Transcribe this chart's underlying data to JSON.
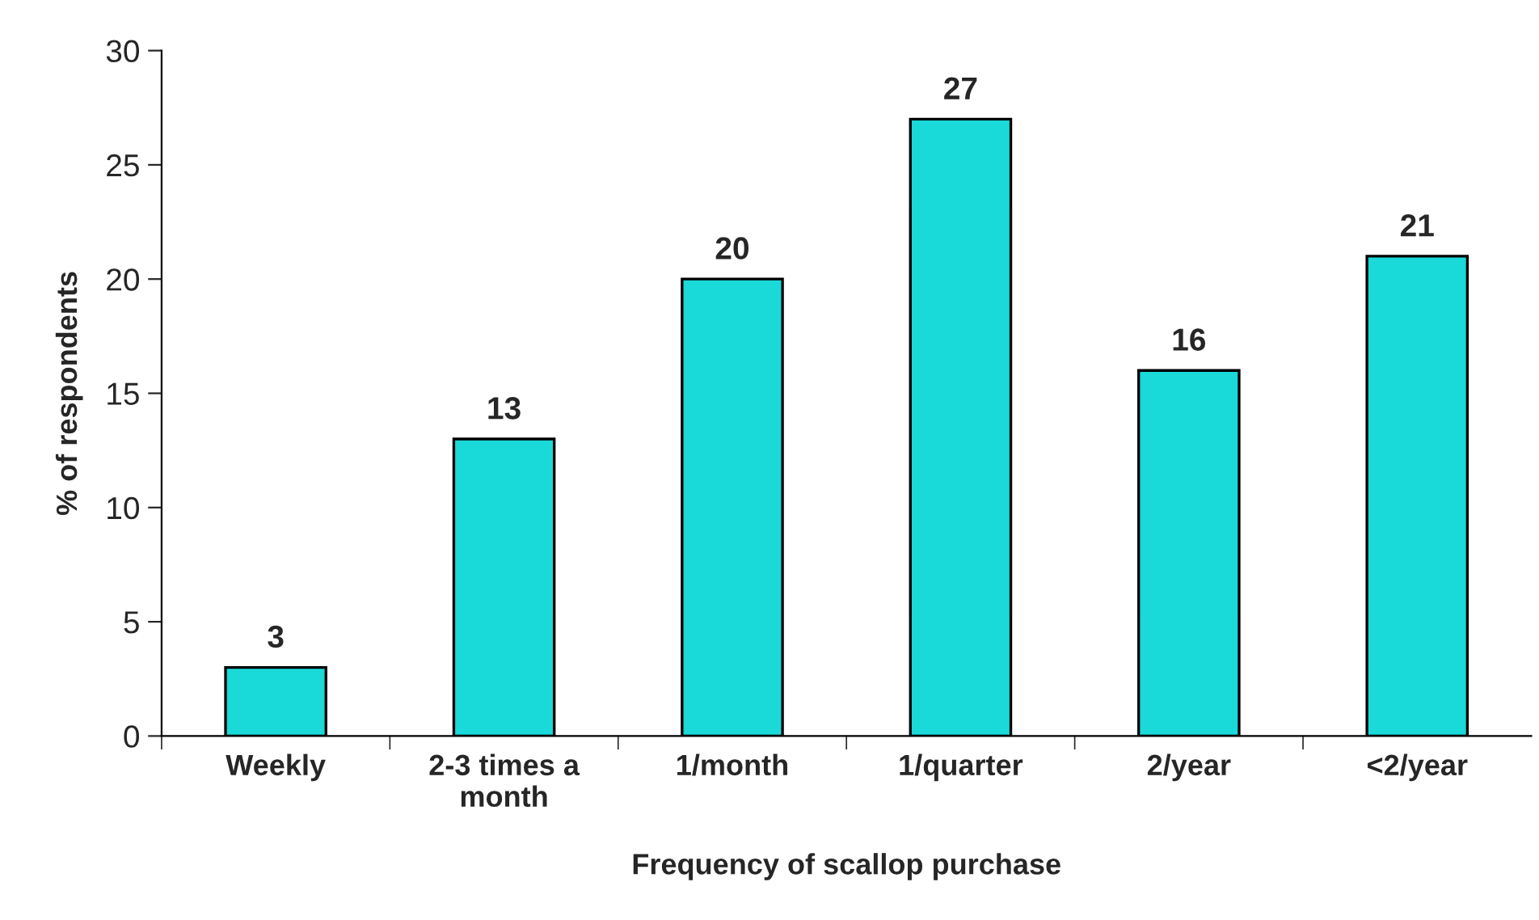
{
  "chart_data": {
    "type": "bar",
    "xlabel": "Frequency of scallop purchase",
    "ylabel": "% of respondents",
    "categories": [
      "Weekly",
      "2-3 times a\nmonth",
      "1/month",
      "1/quarter",
      "2/year",
      "<2/year"
    ],
    "values": [
      3,
      13,
      20,
      27,
      16,
      21
    ],
    "color": "#1ad9d9",
    "ylim": [
      0,
      30
    ],
    "yticks": [
      0,
      5,
      10,
      15,
      20,
      25,
      30
    ],
    "data_labels": true,
    "grid": false,
    "legend": false
  }
}
